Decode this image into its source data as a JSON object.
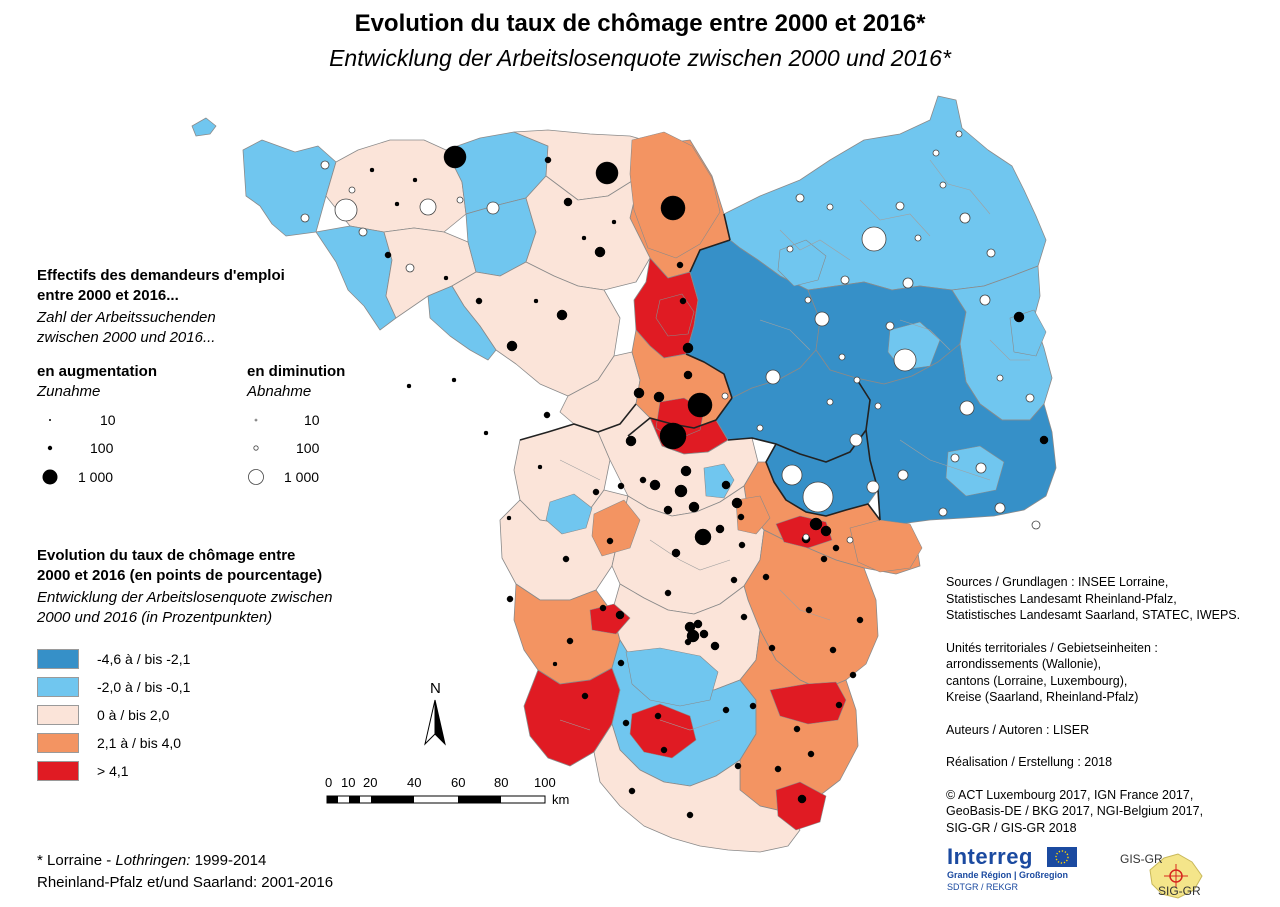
{
  "title": {
    "main": "Evolution du taux de chômage entre 2000 et 2016*",
    "sub": "Entwicklung der Arbeitslosenquote zwischen 2000 und 2016*"
  },
  "legend_circles": {
    "heading_fr_1": "Effectifs des demandeurs d'emploi",
    "heading_fr_2": "entre 2000 et 2016...",
    "heading_de_1": "Zahl der Arbeitssuchenden",
    "heading_de_2": "zwischen 2000 und 2016...",
    "increase_fr": "en augmentation",
    "increase_de": "Zunahme",
    "decrease_fr": "en diminution",
    "decrease_de": "Abnahme",
    "sizes": [
      "10",
      "100",
      "1 000"
    ]
  },
  "legend_classes": {
    "heading_fr_1": "Evolution du taux de chômage entre",
    "heading_fr_2": "2000 et 2016 (en points de pourcentage)",
    "heading_de_1": "Entwicklung der Arbeitslosenquote zwischen",
    "heading_de_2": "2000 und 2016 (in Prozentpunkten)",
    "classes": [
      {
        "label": "-4,6 à / bis -2,1",
        "color": "#3690c8"
      },
      {
        "label": "-2,0 à / bis -0,1",
        "color": "#70c6ef"
      },
      {
        "label": "0 à / bis 2,0",
        "color": "#fbe4d9"
      },
      {
        "label": "2,1 à / bis 4,0",
        "color": "#f39462"
      },
      {
        "label": "> 4,1",
        "color": "#e01b23"
      }
    ]
  },
  "north_arrow": {
    "label": "N"
  },
  "scale_bar": {
    "ticks": [
      "0",
      "10",
      "20",
      "40",
      "60",
      "80",
      "100"
    ],
    "unit": "km"
  },
  "sources": {
    "line1": "Sources / Grundlagen : INSEE Lorraine,",
    "line2": "Statistisches Landesamt Rheinland-Pfalz,",
    "line3": "Statistisches Landesamt Saarland, STATEC, IWEPS.",
    "line4": "Unités territoriales / Gebietseinheiten :",
    "line5": "arrondissements (Wallonie),",
    "line6": "cantons (Lorraine, Luxembourg),",
    "line7": "Kreise (Saarland, Rheinland-Pfalz)",
    "line8": "Auteurs / Autoren : LISER",
    "line9": "Réalisation / Erstellung : 2018",
    "line10": "© ACT Luxembourg 2017, IGN France 2017,",
    "line11": "GeoBasis-DE / BKG 2017, NGI-Belgium 2017,",
    "line12": "SIG-GR / GIS-GR 2018"
  },
  "footnote": {
    "l1_a": "* Lorraine - ",
    "l1_b": "Lothringen:",
    "l1_c": " 1999-2014",
    "l2": "Rheinland-Pfalz et/und Saarland: 2001-2016"
  },
  "logos": {
    "interreg": "Interreg",
    "interreg_sub1": "Grande Région | Großregion",
    "interreg_sub2": "SDTGR / REKGR",
    "gisgr_top": "GIS-GR",
    "gisgr_bottom": "SIG-GR"
  }
}
